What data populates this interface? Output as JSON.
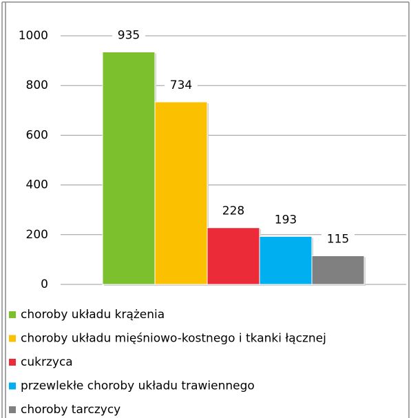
{
  "chart_data": {
    "type": "bar",
    "categories": [
      null
    ],
    "series": [
      {
        "name": "choroby układu krążenia",
        "color": "#7cc02e",
        "values": [
          935
        ]
      },
      {
        "name": "choroby układu mięśniowo-kostnego i tkanki łącznej",
        "color": "#fbc000",
        "values": [
          734
        ]
      },
      {
        "name": "cukrzyca",
        "color": "#ec2b39",
        "values": [
          228
        ]
      },
      {
        "name": "przewlekłe choroby układu trawiennego",
        "color": "#00aff0",
        "values": [
          193
        ]
      },
      {
        "name": "choroby tarczycy",
        "color": "#808080",
        "values": [
          115
        ]
      }
    ],
    "ylim": [
      0,
      1000
    ],
    "yticks": [
      0,
      200,
      400,
      600,
      800,
      1000
    ],
    "grid": true,
    "legend": "bottom"
  }
}
